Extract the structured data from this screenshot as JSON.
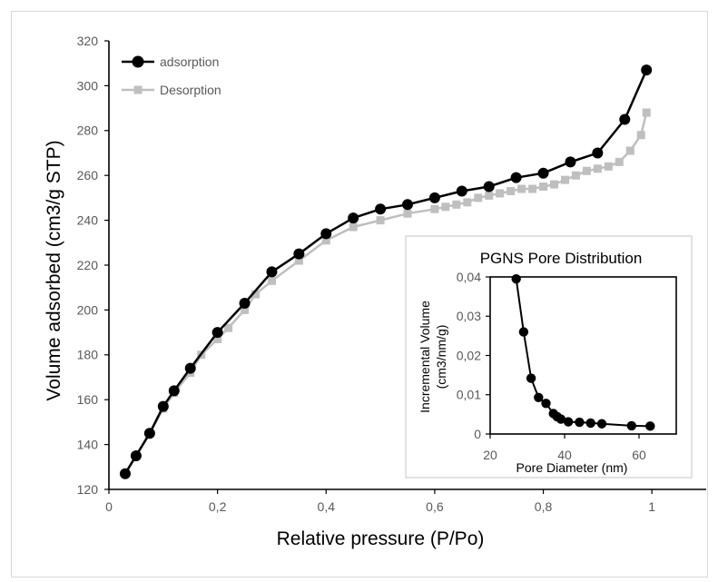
{
  "chart_data": [
    {
      "type": "line",
      "title": "",
      "xlabel": "Relative pressure (P/Po)",
      "ylabel": "Volume adsorbed (cm3/g STP)",
      "xlim": [
        0,
        1.1
      ],
      "ylim": [
        120,
        320
      ],
      "x_ticks": [
        "0",
        "0,2",
        "0,4",
        "0,6",
        "0,8",
        "1"
      ],
      "y_ticks": [
        "120",
        "140",
        "160",
        "180",
        "200",
        "220",
        "240",
        "260",
        "280",
        "300",
        "320"
      ],
      "grid": false,
      "legend_position": "top-left",
      "series": [
        {
          "name": "adsorption",
          "color": "#000000",
          "marker": "circle",
          "x": [
            0.03,
            0.05,
            0.075,
            0.1,
            0.12,
            0.15,
            0.2,
            0.25,
            0.3,
            0.35,
            0.4,
            0.45,
            0.5,
            0.55,
            0.6,
            0.65,
            0.7,
            0.75,
            0.8,
            0.85,
            0.9,
            0.95,
            0.99
          ],
          "y": [
            127,
            135,
            145,
            157,
            164,
            174,
            190,
            203,
            217,
            225,
            234,
            241,
            245,
            247,
            250,
            253,
            255,
            259,
            261,
            266,
            270,
            285,
            307
          ]
        },
        {
          "name": "Desorption",
          "color": "#bfbfbf",
          "marker": "square",
          "x": [
            0.99,
            0.98,
            0.96,
            0.94,
            0.92,
            0.9,
            0.88,
            0.86,
            0.84,
            0.82,
            0.8,
            0.78,
            0.76,
            0.74,
            0.72,
            0.7,
            0.68,
            0.66,
            0.64,
            0.62,
            0.6,
            0.55,
            0.5,
            0.45,
            0.4,
            0.35,
            0.3,
            0.27,
            0.25,
            0.22,
            0.2,
            0.17,
            0.15,
            0.12,
            0.1,
            0.075,
            0.05,
            0.03
          ],
          "y": [
            288,
            278,
            271,
            266,
            264,
            263,
            262,
            260,
            258,
            256,
            255,
            254,
            254,
            253,
            252,
            251,
            250,
            248,
            247,
            246,
            245,
            243,
            240,
            237,
            231,
            222,
            213,
            207,
            200,
            192,
            187,
            180,
            172,
            163,
            156,
            145,
            135,
            127
          ]
        }
      ]
    },
    {
      "type": "line",
      "title": "PGNS Pore Distribution",
      "xlabel": "Pore Diameter (nm)",
      "ylabel": [
        "Incremental Volume",
        "(cm3/nm/g)"
      ],
      "xlim": [
        20,
        70
      ],
      "ylim": [
        0,
        0.04
      ],
      "x_ticks": [
        "20",
        "40",
        "60"
      ],
      "y_ticks": [
        "0",
        "0,01",
        "0,02",
        "0,03",
        "0,04"
      ],
      "grid": false,
      "series": [
        {
          "color": "#000000",
          "marker": "circle",
          "x": [
            27,
            29,
            31,
            33,
            35,
            37,
            38,
            39,
            41,
            44,
            47,
            50,
            58,
            63
          ],
          "y": [
            0.0395,
            0.026,
            0.0142,
            0.0093,
            0.0078,
            0.0052,
            0.0044,
            0.0038,
            0.0031,
            0.003,
            0.0028,
            0.0026,
            0.0021,
            0.002
          ]
        }
      ]
    }
  ]
}
